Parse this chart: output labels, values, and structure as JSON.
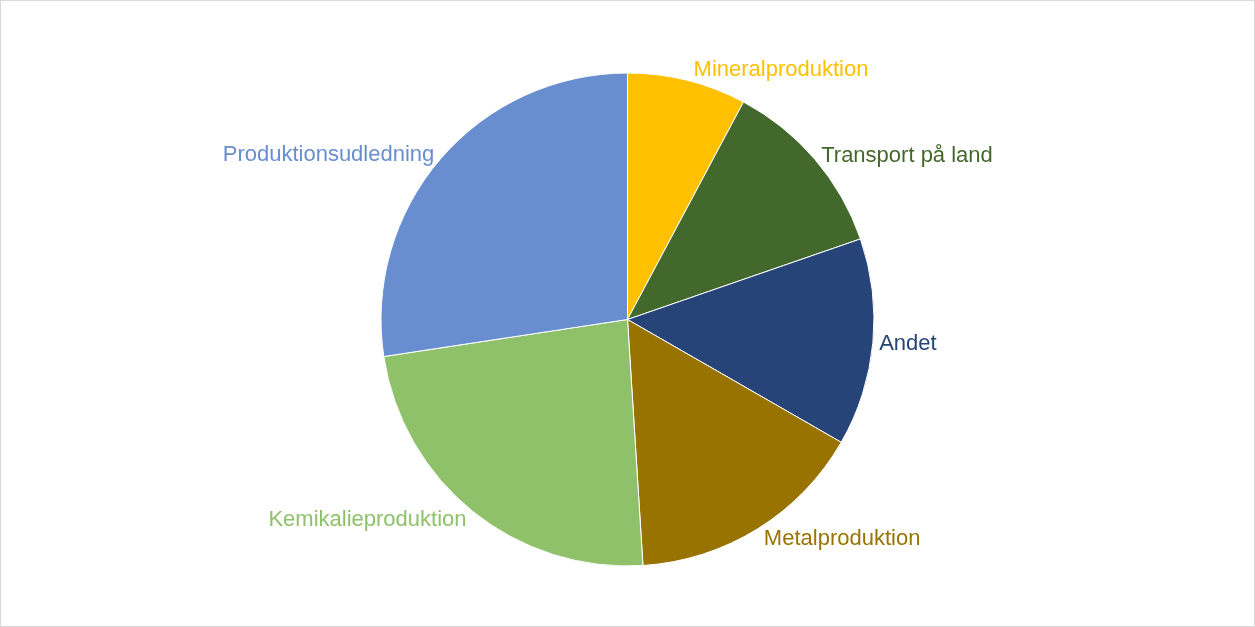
{
  "chart_data": {
    "type": "pie",
    "categories": [
      "Mineralproduktion",
      "Transport på land",
      "Andet",
      "Metalproduktion",
      "Kemikalieproduktion",
      "Produktionsudledning"
    ],
    "values": [
      7.8,
      11.9,
      13.6,
      15.7,
      23.6,
      27.4
    ],
    "colors": [
      "#ffc000",
      "#43682b",
      "#264478",
      "#997300",
      "#8fc16a",
      "#698ed0"
    ],
    "legend": false
  }
}
